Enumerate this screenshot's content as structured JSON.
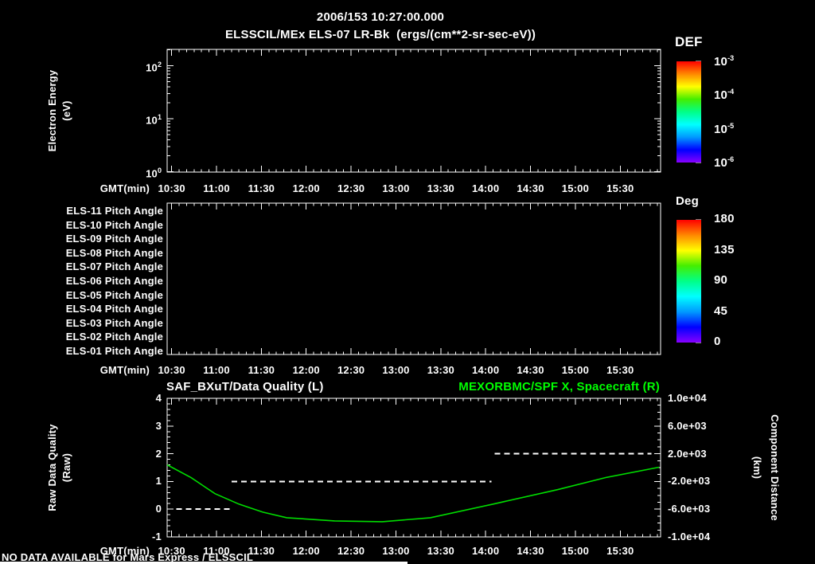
{
  "title": {
    "datetime": "2006/153 10:27:00.000",
    "instrument": "ELSSCIL/MEx ELS-07 LR-Bk  (ergs/(cm**2-sr-sec-eV))"
  },
  "footer": {
    "no_data_notice": "NO DATA AVAILABLE for Mars Express / ELSSCIL"
  },
  "time_axis": {
    "label": "GMT(min)",
    "major_tick_labels": [
      "10:30",
      "11:00",
      "11:30",
      "12:00",
      "12:30",
      "13:00",
      "13:30",
      "14:00",
      "14:30",
      "15:00",
      "15:30"
    ],
    "start_minutes": 627,
    "end_minutes": 957,
    "major_step_minutes": 30,
    "minor_step_minutes": 5
  },
  "colors": {
    "background": "#000000",
    "foreground": "#ffffff",
    "title_green": "#00ff00",
    "series_green": "#00dd00",
    "rainbow": [
      "#ff0000",
      "#ff8800",
      "#ffff00",
      "#44ee00",
      "#00ff88",
      "#00ffff",
      "#0099ff",
      "#0000ff",
      "#8800ff"
    ]
  },
  "chart_data": [
    {
      "type": "heatmap",
      "name": "electron-energy-spectrogram",
      "ylabel": "Electron Energy",
      "ylabel_units": "(eV)",
      "yaxis_scale": "log",
      "yaxis_ticks": [
        {
          "base": "10",
          "exp": "2"
        },
        {
          "base": "10",
          "exp": "1"
        },
        {
          "base": "10",
          "exp": "0"
        }
      ],
      "yaxis_decade_exponents": [
        2,
        1,
        0
      ],
      "colorbar": {
        "title": "DEF",
        "tick_labels": [
          {
            "base": "10",
            "exp": "-3"
          },
          {
            "base": "10",
            "exp": "-4"
          },
          {
            "base": "10",
            "exp": "-5"
          },
          {
            "base": "10",
            "exp": "-6"
          }
        ]
      },
      "values": []
    },
    {
      "type": "heatmap",
      "name": "pitch-angle-panels",
      "row_labels": [
        "ELS-11 Pitch Angle",
        "ELS-10 Pitch Angle",
        "ELS-09 Pitch Angle",
        "ELS-08 Pitch Angle",
        "ELS-07 Pitch Angle",
        "ELS-06 Pitch Angle",
        "ELS-05 Pitch Angle",
        "ELS-04 Pitch Angle",
        "ELS-03 Pitch Angle",
        "ELS-02 Pitch Angle",
        "ELS-01 Pitch Angle"
      ],
      "colorbar": {
        "title": "Deg",
        "tick_values": [
          180,
          135,
          90,
          45,
          0
        ],
        "minor_step": 15,
        "range": [
          0,
          180
        ]
      },
      "values": []
    },
    {
      "type": "line",
      "name": "quality-and-distance",
      "title_left": "SAF_BXuT/Data Quality (L)",
      "title_right": "MEXORBMC/SPF X, Spacecraft (R)",
      "left_axis": {
        "label": "Raw Data Quality",
        "label_units": "(Raw)",
        "tick_values": [
          4,
          3,
          2,
          1,
          0,
          -1
        ],
        "range": [
          -1,
          4
        ]
      },
      "right_axis": {
        "label": "Component Distance",
        "label_units": "(km)",
        "tick_labels": [
          "1.0e+04",
          "6.0e+03",
          "2.0e+03",
          "-2.0e+03",
          "-6.0e+03",
          "-1.0e+04"
        ],
        "tick_values": [
          10000,
          6000,
          2000,
          -2000,
          -6000,
          -10000
        ],
        "range": [
          -10000,
          10000
        ]
      },
      "series": [
        {
          "name": "SAF_BXuT/Data Quality (L)",
          "axis": "left",
          "style": "dashed",
          "color": "#ffffff",
          "segments": [
            {
              "value": 0,
              "start": "10:33",
              "end": "11:09",
              "start_min": 633,
              "end_min": 669
            },
            {
              "value": 1,
              "start": "11:10",
              "end": "14:04",
              "start_min": 670,
              "end_min": 844
            },
            {
              "value": 2,
              "start": "14:06",
              "end": "15:51",
              "start_min": 846,
              "end_min": 951
            }
          ]
        },
        {
          "name": "MEXORBMC/SPF X, Spacecraft (R)",
          "axis": "right",
          "style": "solid",
          "color": "#00dd00",
          "points_min_km": [
            [
              627,
              400
            ],
            [
              643,
              -1450
            ],
            [
              659,
              -3760
            ],
            [
              675,
              -5260
            ],
            [
              691,
              -6420
            ],
            [
              707,
              -7230
            ],
            [
              739,
              -7690
            ],
            [
              771,
              -7800
            ],
            [
              803,
              -7230
            ],
            [
              845,
              -5260
            ],
            [
              888,
              -3180
            ],
            [
              920,
              -1450
            ],
            [
              956,
              60
            ]
          ]
        }
      ]
    }
  ]
}
